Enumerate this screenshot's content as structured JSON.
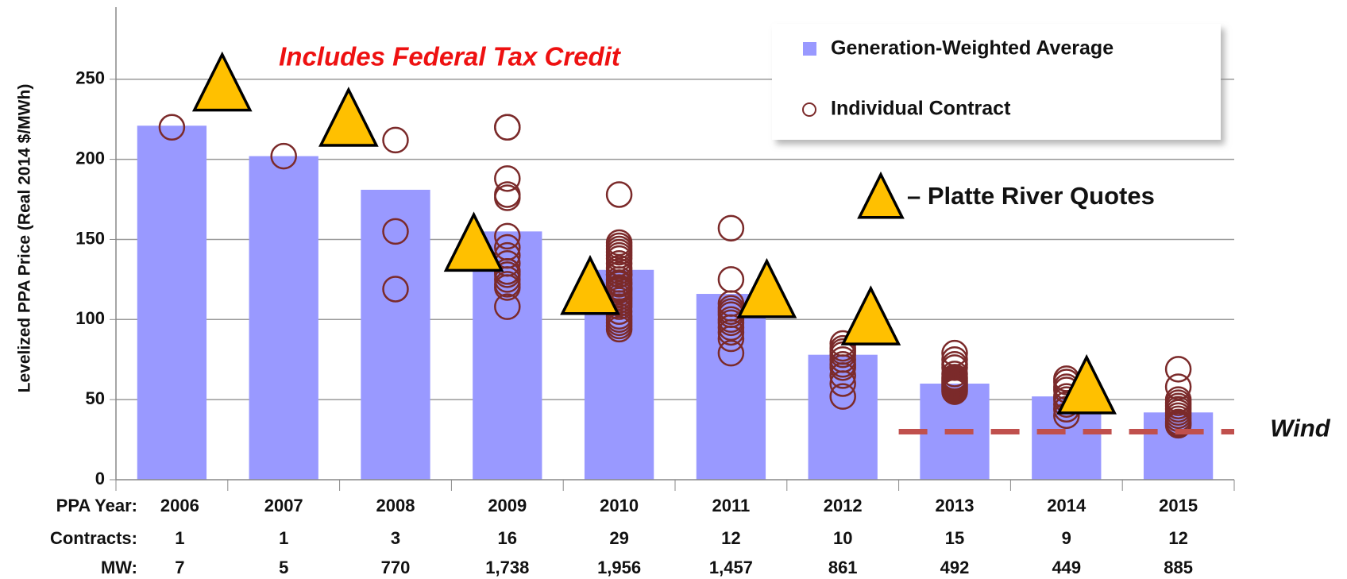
{
  "chart_data": {
    "type": "bar",
    "annotation": "Includes Federal Tax Credit",
    "y_label": "Levelized  PPA Price (Real 2014 $/MWh)",
    "categories": [
      "2006",
      "2007",
      "2008",
      "2009",
      "2010",
      "2011",
      "2012",
      "2013",
      "2014",
      "2015"
    ],
    "xlim": [
      2005.5,
      2015.5
    ],
    "ylim": [
      0,
      295
    ],
    "yticks": [
      0,
      50,
      100,
      150,
      200,
      250
    ],
    "grid": true,
    "series": [
      {
        "name": "Generation-Weighted Average",
        "color": "#9999ff",
        "values": [
          221,
          202,
          181,
          155,
          131,
          116,
          78,
          60,
          52,
          42
        ]
      }
    ],
    "individual_contracts": {
      "name": "Individual Contract",
      "color": "#7b2a2a",
      "values": [
        [
          220
        ],
        [
          202
        ],
        [
          212,
          155,
          119
        ],
        [
          220,
          220,
          188,
          178,
          176,
          152,
          145,
          140,
          135,
          130,
          128,
          125,
          122,
          120,
          108,
          130
        ],
        [
          178,
          148,
          146,
          144,
          140,
          138,
          135,
          130,
          128,
          125,
          123,
          120,
          118,
          116,
          114,
          112,
          110,
          108,
          105,
          102,
          100,
          98,
          96,
          94,
          128,
          132,
          122,
          119,
          142
        ],
        [
          157,
          125,
          110,
          107,
          105,
          103,
          100,
          98,
          95,
          92,
          88,
          79
        ],
        [
          85,
          82,
          80,
          78,
          75,
          72,
          70,
          65,
          60,
          52
        ],
        [
          79,
          75,
          72,
          70,
          66,
          64,
          62,
          61,
          60,
          59,
          58,
          57,
          56,
          55,
          63
        ],
        [
          63,
          61,
          58,
          56,
          52,
          50,
          47,
          44,
          40
        ],
        [
          69,
          58,
          50,
          48,
          46,
          44,
          42,
          40,
          38,
          36,
          35,
          34
        ]
      ]
    },
    "platte_river_quotes": {
      "name": "– Platte River Quotes",
      "color": "#ffc000",
      "x": [
        2006.45,
        2007.58,
        2008.7,
        2009.74,
        2011.32,
        2012.25,
        2014.18
      ],
      "values": [
        246,
        224,
        146,
        119,
        117,
        100,
        57
      ]
    },
    "wind": {
      "label": "Wind",
      "value": 30,
      "x": [
        2012.5,
        2015.5
      ],
      "color": "#c0504d"
    },
    "table_rows": [
      {
        "label": "PPA Year:",
        "values": [
          "2006",
          "2007",
          "2008",
          "2009",
          "2010",
          "2011",
          "2012",
          "2013",
          "2014",
          "2015"
        ]
      },
      {
        "label": "Contracts:",
        "values": [
          "1",
          "1",
          "3",
          "16",
          "29",
          "12",
          "10",
          "15",
          "9",
          "12"
        ]
      },
      {
        "label": "MW:",
        "values": [
          "7",
          "5",
          "770",
          "1,738",
          "1,956",
          "1,457",
          "861",
          "492",
          "449",
          "885"
        ]
      }
    ]
  }
}
